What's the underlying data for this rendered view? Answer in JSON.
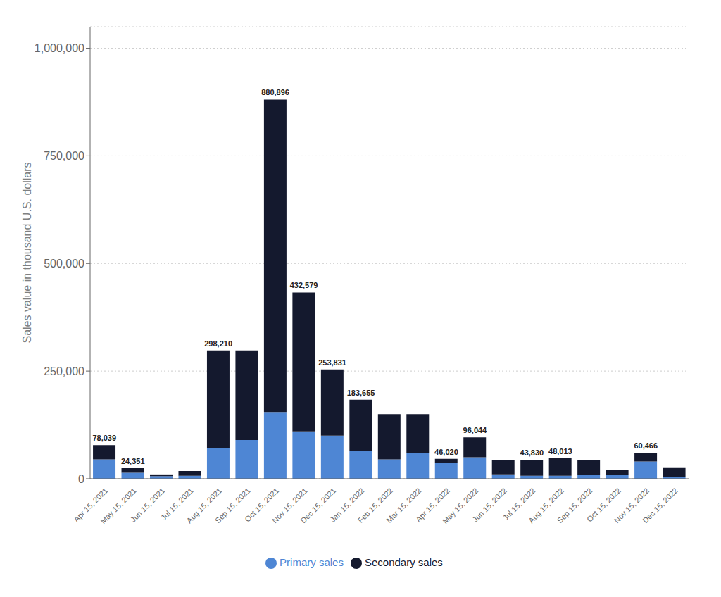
{
  "chart_data": {
    "type": "bar",
    "stacked": true,
    "grid": true,
    "legend": "bottom",
    "ylabel": "Sales value in thousand U.S. dollars",
    "categories": [
      "Apr 15, 2021",
      "May 15, 2021",
      "Jun 15, 2021",
      "Jul 15, 2021",
      "Aug 15, 2021",
      "Sep 15, 2021",
      "Oct 15, 2021",
      "Nov 15, 2021",
      "Dec 15, 2021",
      "Jan 15, 2022",
      "Feb 15, 2022",
      "Mar 15, 2022",
      "Apr 15, 2022",
      "May 15, 2022",
      "Jun 15, 2022",
      "Jul 15, 2022",
      "Aug 15, 2022",
      "Sep 15, 2022",
      "Oct 15, 2022",
      "Nov 15, 2022",
      "Dec 15, 2022"
    ],
    "series": [
      {
        "name": "Primary sales",
        "color": "#4e86d4",
        "values": [
          45000,
          14000,
          6000,
          7000,
          72000,
          90000,
          155000,
          110000,
          100000,
          65000,
          45000,
          60000,
          37000,
          50000,
          10000,
          7000,
          7000,
          8000,
          8000,
          40000,
          5000
        ]
      },
      {
        "name": "Secondary sales",
        "color": "#14192e",
        "values": [
          33039,
          10351,
          4000,
          11000,
          226210,
          208000,
          725896,
          322579,
          153831,
          118655,
          105000,
          90000,
          9020,
          46044,
          33000,
          36830,
          41013,
          35000,
          12000,
          20466,
          20000
        ]
      }
    ],
    "totals": [
      78039,
      24351,
      null,
      null,
      298210,
      null,
      880896,
      432579,
      253831,
      183655,
      null,
      null,
      46020,
      96044,
      null,
      43830,
      48013,
      null,
      null,
      60466,
      null
    ],
    "total_labels": [
      "78,039",
      "24,351",
      null,
      null,
      "298,210",
      null,
      "880,896",
      "432,579",
      "253,831",
      "183,655",
      null,
      null,
      "46,020",
      "96,044",
      null,
      "43,830",
      "48,013",
      null,
      null,
      "60,466",
      null
    ],
    "ylim": [
      0,
      1050000
    ],
    "yticks": [
      0,
      {
        "value": 250000,
        "label": "250,000"
      },
      {
        "value": 500000,
        "label": "500,000"
      },
      {
        "value": 750000,
        "label": "750,000"
      },
      {
        "value": 1000000,
        "label": "1,000,000"
      }
    ]
  }
}
